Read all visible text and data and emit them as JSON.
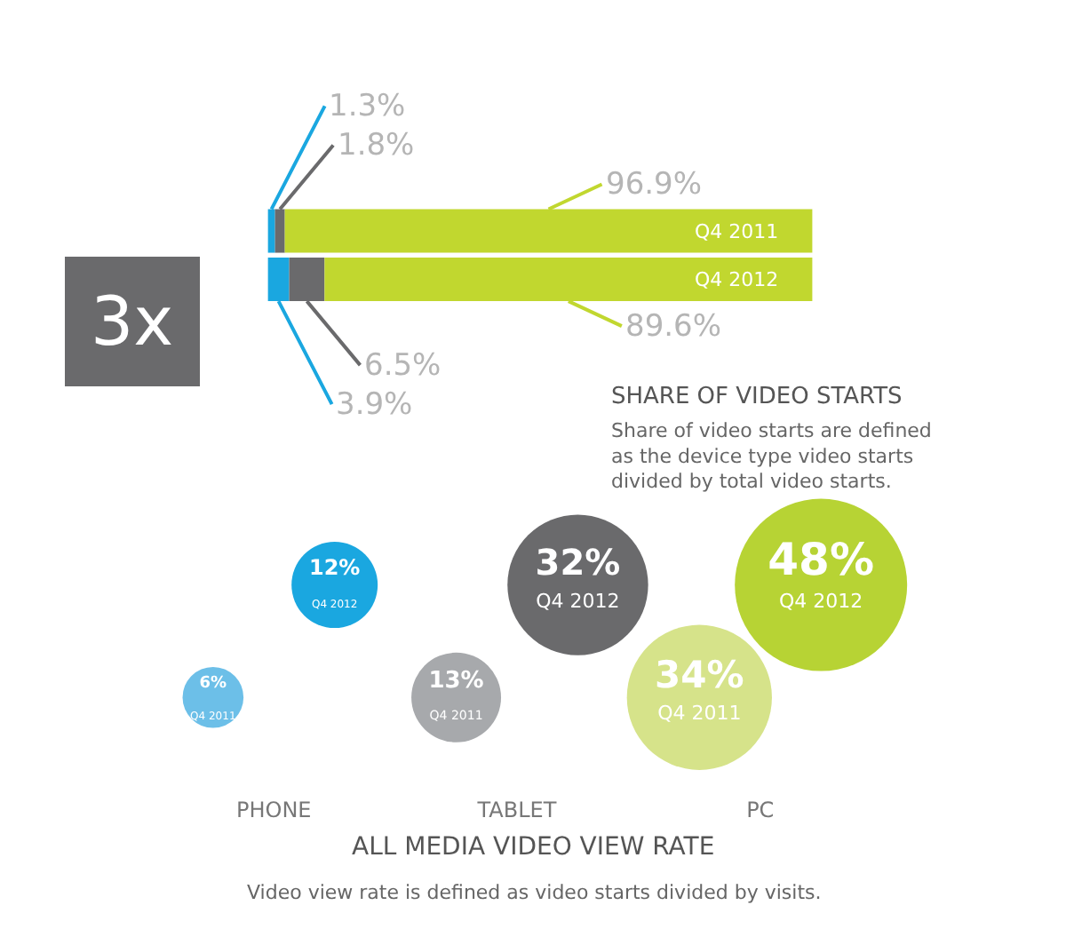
{
  "chart_data": [
    {
      "type": "bar",
      "orientation": "horizontal",
      "stacked": true,
      "title": "SHARE OF VIDEO STARTS",
      "categories": [
        "Q4 2011",
        "Q4 2012"
      ],
      "series": [
        {
          "color": "#1aa7e0",
          "values": [
            1.3,
            3.9
          ],
          "value_labels": [
            "1.3%",
            "3.9%"
          ]
        },
        {
          "color": "#6a6a6c",
          "values": [
            1.8,
            6.5
          ],
          "value_labels": [
            "1.8%",
            "6.5%"
          ]
        },
        {
          "color": "#c1d72f",
          "values": [
            96.9,
            89.6
          ],
          "value_labels": [
            "96.9%",
            "89.6%"
          ]
        }
      ],
      "annotations": [
        "3x",
        "Share of video starts are defined as the device type video starts divided by total video starts."
      ]
    },
    {
      "type": "other",
      "title": "ALL MEDIA VIDEO VIEW RATE",
      "categories": [
        "PHONE",
        "TABLET",
        "PC"
      ],
      "series": [
        {
          "name": "Q4 2011",
          "colors": [
            "#6cbfe8",
            "#a7a9ac",
            "#d6e38a"
          ],
          "values": [
            6,
            13,
            34
          ],
          "value_labels": [
            "6%",
            "13%",
            "34%"
          ]
        },
        {
          "name": "Q4 2012",
          "colors": [
            "#1aa7e0",
            "#6a6a6c",
            "#b7d334"
          ],
          "values": [
            12,
            32,
            48
          ],
          "value_labels": [
            "12%",
            "32%",
            "48%"
          ]
        }
      ],
      "annotations": [
        "Video view rate is defined as video starts divided by visits."
      ]
    }
  ]
}
